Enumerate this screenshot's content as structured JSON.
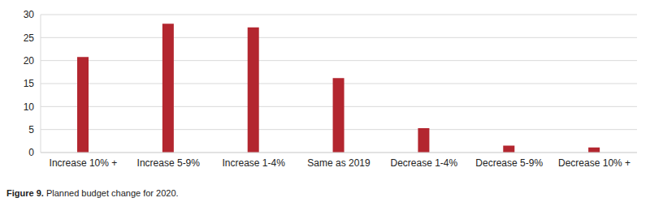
{
  "chart_data": {
    "type": "bar",
    "title": "Figure 9. Planned budget change for 2020.",
    "categories": [
      "Increase 10% +",
      "Increase 5-9%",
      "Increase 1-4%",
      "Same as 2019",
      "Decrease 1-4%",
      "Decrease 5-9%",
      "Decrease 10% +"
    ],
    "values": [
      20.8,
      28,
      27.2,
      16.2,
      5.3,
      1.5,
      1.1
    ],
    "color": "#b3262f",
    "ylim": [
      0,
      30
    ],
    "yticks": [
      0,
      5,
      10,
      15,
      20,
      25,
      30
    ],
    "grid": true
  }
}
